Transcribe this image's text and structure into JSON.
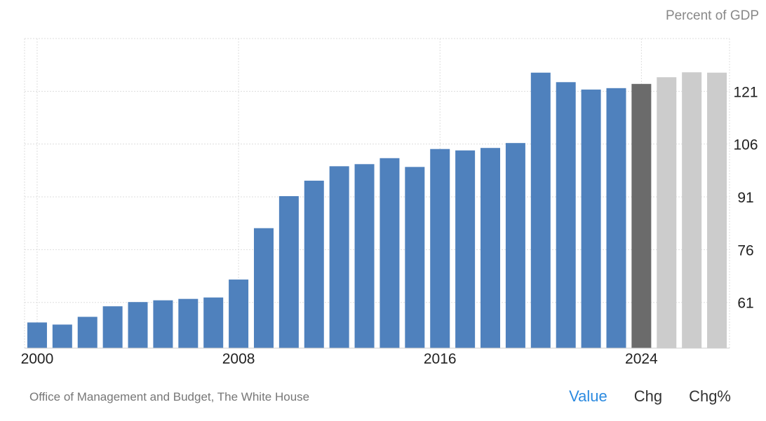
{
  "chart_data": {
    "type": "bar",
    "unit": "Percent of GDP",
    "x": [
      2000,
      2001,
      2002,
      2003,
      2004,
      2005,
      2006,
      2007,
      2008,
      2009,
      2010,
      2011,
      2012,
      2013,
      2014,
      2015,
      2016,
      2017,
      2018,
      2019,
      2020,
      2021,
      2022,
      2023,
      2024,
      2025,
      2026,
      2027
    ],
    "values": [
      55.3,
      54.7,
      56.9,
      59.9,
      61.1,
      61.6,
      62.0,
      62.4,
      67.5,
      82.1,
      91.2,
      95.6,
      99.7,
      100.3,
      102.0,
      99.5,
      104.6,
      104.2,
      104.9,
      106.3,
      126.3,
      123.6,
      121.5,
      121.9,
      123.1,
      125.0,
      126.4,
      126.3
    ],
    "highlight_index": 24,
    "forecast_from_index": 25,
    "colors": {
      "actual": "#4f81bd",
      "current": "#6b6b6b",
      "forecast": "#cccccc",
      "grid": "#dddddd",
      "axis_text": "#222222"
    },
    "ylim": [
      48,
      136
    ],
    "yticks": [
      61,
      76,
      91,
      106,
      121
    ],
    "xticks": [
      2000,
      2008,
      2016,
      2024
    ],
    "grid": true
  },
  "source": "Office of Management and Budget, The White House",
  "tabs": [
    {
      "label": "Value",
      "active": true
    },
    {
      "label": "Chg",
      "active": false
    },
    {
      "label": "Chg%",
      "active": false
    }
  ]
}
